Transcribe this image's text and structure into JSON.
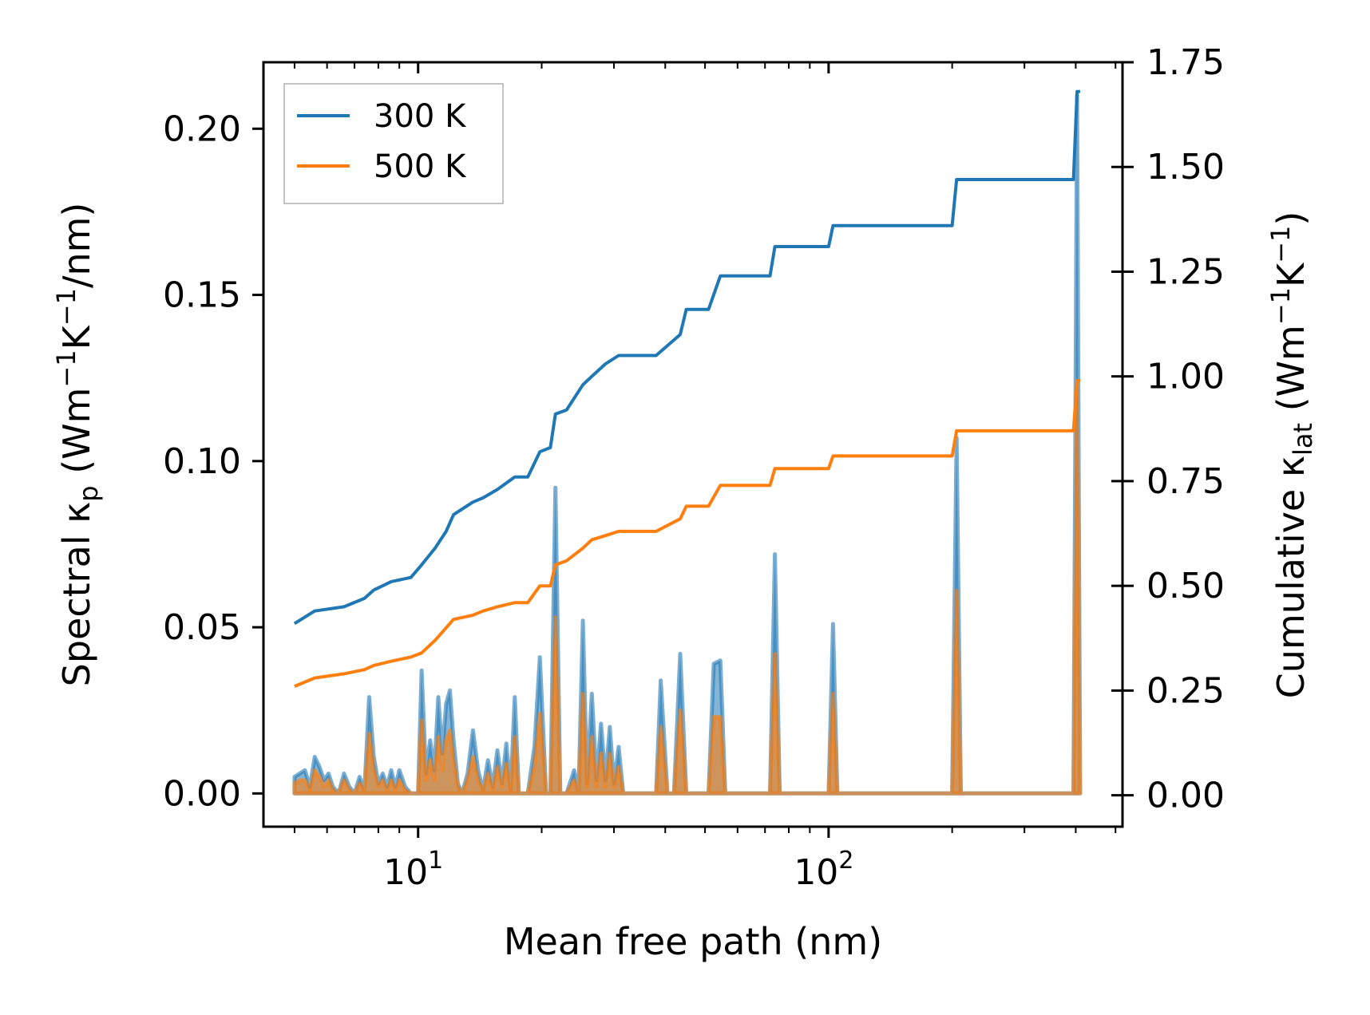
{
  "chart_data": {
    "type": "line",
    "xscale": "log",
    "xlabel": "Mean free path (nm)",
    "ylabel_left": "Spectral κp (Wm−1K−1/nm)",
    "ylabel_right": "Cumulative κlat (Wm−1K−1)",
    "ylabel_left_parts": {
      "a": "Spectral κ",
      "sub": "p",
      "b": " (Wm",
      "sup1": "−1",
      "c": "K",
      "sup2": "−1",
      "d": "/nm)"
    },
    "ylabel_right_parts": {
      "a": "Cumulative κ",
      "sub": "lat",
      "b": " (Wm",
      "sup1": "−1",
      "c": "K",
      "sup2": "−1",
      "d": ")"
    },
    "xlim": [
      4.2,
      520
    ],
    "ylim_left": [
      -0.01,
      0.22
    ],
    "ylim_right": [
      -0.075,
      1.75
    ],
    "xticks": [
      {
        "value": 10,
        "base": "10",
        "exp": "1"
      },
      {
        "value": 100,
        "base": "10",
        "exp": "2"
      }
    ],
    "yticks_left": [
      {
        "value": 0.0,
        "label": "0.00"
      },
      {
        "value": 0.05,
        "label": "0.05"
      },
      {
        "value": 0.1,
        "label": "0.10"
      },
      {
        "value": 0.15,
        "label": "0.15"
      },
      {
        "value": 0.2,
        "label": "0.20"
      }
    ],
    "yticks_right": [
      {
        "value": 0.0,
        "label": "0.00"
      },
      {
        "value": 0.25,
        "label": "0.25"
      },
      {
        "value": 0.5,
        "label": "0.50"
      },
      {
        "value": 0.75,
        "label": "0.75"
      },
      {
        "value": 1.0,
        "label": "1.00"
      },
      {
        "value": 1.25,
        "label": "1.25"
      },
      {
        "value": 1.5,
        "label": "1.50"
      },
      {
        "value": 1.75,
        "label": "1.75"
      }
    ],
    "legend": {
      "location": "upper-left",
      "entries": [
        "300 K",
        "500 K"
      ]
    },
    "series": [
      {
        "name": "300 K",
        "color": "#1f77b4",
        "spectral": [
          [
            5.0,
            0.005
          ],
          [
            5.15,
            0.006
          ],
          [
            5.3,
            0.007
          ],
          [
            5.45,
            0.002
          ],
          [
            5.6,
            0.011
          ],
          [
            5.75,
            0.008
          ],
          [
            5.9,
            0.004
          ],
          [
            6.05,
            0.006
          ],
          [
            6.2,
            0.002
          ],
          [
            6.4,
            0.0
          ],
          [
            6.6,
            0.006
          ],
          [
            6.8,
            0.002
          ],
          [
            7.0,
            0.0
          ],
          [
            7.2,
            0.005
          ],
          [
            7.4,
            0.001
          ],
          [
            7.6,
            0.029
          ],
          [
            7.8,
            0.011
          ],
          [
            8.0,
            0.003
          ],
          [
            8.2,
            0.006
          ],
          [
            8.4,
            0.002
          ],
          [
            8.6,
            0.007
          ],
          [
            8.8,
            0.002
          ],
          [
            9.0,
            0.007
          ],
          [
            9.3,
            0.002
          ],
          [
            9.6,
            0.0
          ],
          [
            10.0,
            0.0
          ],
          [
            10.2,
            0.037
          ],
          [
            10.45,
            0.006
          ],
          [
            10.7,
            0.016
          ],
          [
            10.95,
            0.007
          ],
          [
            11.2,
            0.029
          ],
          [
            11.45,
            0.012
          ],
          [
            11.7,
            0.027
          ],
          [
            11.95,
            0.031
          ],
          [
            12.2,
            0.016
          ],
          [
            12.5,
            0.003
          ],
          [
            12.8,
            0.0
          ],
          [
            13.2,
            0.006
          ],
          [
            13.6,
            0.019
          ],
          [
            14.0,
            0.007
          ],
          [
            14.4,
            0.001
          ],
          [
            14.8,
            0.01
          ],
          [
            15.2,
            0.002
          ],
          [
            15.6,
            0.013
          ],
          [
            16.0,
            0.003
          ],
          [
            16.4,
            0.015
          ],
          [
            16.8,
            0.001
          ],
          [
            17.2,
            0.029
          ],
          [
            17.6,
            0.0
          ],
          [
            18.5,
            0.0
          ],
          [
            19.2,
            0.014
          ],
          [
            19.8,
            0.041
          ],
          [
            20.5,
            0.0
          ],
          [
            21.0,
            0.0
          ],
          [
            21.6,
            0.092
          ],
          [
            22.2,
            0.0
          ],
          [
            23.0,
            0.0
          ],
          [
            24.0,
            0.007
          ],
          [
            24.6,
            0.0
          ],
          [
            25.2,
            0.052
          ],
          [
            25.8,
            0.003
          ],
          [
            26.5,
            0.03
          ],
          [
            27.2,
            0.004
          ],
          [
            27.9,
            0.021
          ],
          [
            28.6,
            0.004
          ],
          [
            29.3,
            0.02
          ],
          [
            30.0,
            0.003
          ],
          [
            30.8,
            0.014
          ],
          [
            31.6,
            0.0
          ],
          [
            38.0,
            0.0
          ],
          [
            39.0,
            0.034
          ],
          [
            40.5,
            0.0
          ],
          [
            42.0,
            0.0
          ],
          [
            43.5,
            0.042
          ],
          [
            45.0,
            0.0
          ],
          [
            51.0,
            0.0
          ],
          [
            52.5,
            0.039
          ],
          [
            54.5,
            0.04
          ],
          [
            56.0,
            0.0
          ],
          [
            72.0,
            0.0
          ],
          [
            74.0,
            0.072
          ],
          [
            76.0,
            0.0
          ],
          [
            100.0,
            0.0
          ],
          [
            102.5,
            0.051
          ],
          [
            105.0,
            0.0
          ],
          [
            200.0,
            0.0
          ],
          [
            205.0,
            0.107
          ],
          [
            210.0,
            0.0
          ],
          [
            395.0,
            0.0
          ],
          [
            403.0,
            0.21
          ],
          [
            410.0,
            0.0
          ]
        ],
        "cumulative": [
          [
            5.0,
            0.41
          ],
          [
            5.6,
            0.44
          ],
          [
            6.6,
            0.45
          ],
          [
            7.4,
            0.47
          ],
          [
            7.8,
            0.49
          ],
          [
            8.6,
            0.51
          ],
          [
            9.6,
            0.52
          ],
          [
            10.2,
            0.55
          ],
          [
            11.0,
            0.59
          ],
          [
            11.7,
            0.63
          ],
          [
            12.2,
            0.67
          ],
          [
            13.6,
            0.7
          ],
          [
            14.4,
            0.71
          ],
          [
            15.6,
            0.73
          ],
          [
            17.2,
            0.76
          ],
          [
            18.5,
            0.76
          ],
          [
            19.8,
            0.82
          ],
          [
            21.0,
            0.83
          ],
          [
            21.6,
            0.91
          ],
          [
            23.0,
            0.92
          ],
          [
            25.2,
            0.98
          ],
          [
            26.5,
            1.0
          ],
          [
            28.6,
            1.03
          ],
          [
            30.8,
            1.05
          ],
          [
            38.0,
            1.05
          ],
          [
            43.5,
            1.1
          ],
          [
            45.0,
            1.16
          ],
          [
            51.0,
            1.16
          ],
          [
            54.5,
            1.24
          ],
          [
            72.0,
            1.24
          ],
          [
            74.0,
            1.31
          ],
          [
            100.0,
            1.31
          ],
          [
            102.5,
            1.36
          ],
          [
            200.0,
            1.36
          ],
          [
            205.0,
            1.47
          ],
          [
            395.0,
            1.47
          ],
          [
            403.0,
            1.68
          ],
          [
            410.0,
            1.68
          ]
        ]
      },
      {
        "name": "500 K",
        "color": "#ff7f0e",
        "spectral": [
          [
            5.0,
            0.003
          ],
          [
            5.15,
            0.004
          ],
          [
            5.3,
            0.004
          ],
          [
            5.45,
            0.001
          ],
          [
            5.6,
            0.007
          ],
          [
            5.75,
            0.005
          ],
          [
            5.9,
            0.002
          ],
          [
            6.05,
            0.004
          ],
          [
            6.2,
            0.001
          ],
          [
            6.4,
            0.0
          ],
          [
            6.6,
            0.004
          ],
          [
            6.8,
            0.001
          ],
          [
            7.0,
            0.0
          ],
          [
            7.2,
            0.003
          ],
          [
            7.4,
            0.001
          ],
          [
            7.6,
            0.018
          ],
          [
            7.8,
            0.007
          ],
          [
            8.0,
            0.002
          ],
          [
            8.2,
            0.004
          ],
          [
            8.4,
            0.001
          ],
          [
            8.6,
            0.004
          ],
          [
            8.8,
            0.001
          ],
          [
            9.0,
            0.004
          ],
          [
            9.3,
            0.001
          ],
          [
            9.6,
            0.0
          ],
          [
            10.0,
            0.0
          ],
          [
            10.2,
            0.022
          ],
          [
            10.45,
            0.004
          ],
          [
            10.7,
            0.01
          ],
          [
            10.95,
            0.004
          ],
          [
            11.2,
            0.017
          ],
          [
            11.45,
            0.007
          ],
          [
            11.7,
            0.016
          ],
          [
            11.95,
            0.019
          ],
          [
            12.2,
            0.01
          ],
          [
            12.5,
            0.002
          ],
          [
            12.8,
            0.0
          ],
          [
            13.2,
            0.004
          ],
          [
            13.6,
            0.011
          ],
          [
            14.0,
            0.004
          ],
          [
            14.4,
            0.001
          ],
          [
            14.8,
            0.006
          ],
          [
            15.2,
            0.001
          ],
          [
            15.6,
            0.008
          ],
          [
            16.0,
            0.002
          ],
          [
            16.4,
            0.009
          ],
          [
            16.8,
            0.001
          ],
          [
            17.2,
            0.017
          ],
          [
            17.6,
            0.0
          ],
          [
            18.5,
            0.0
          ],
          [
            19.2,
            0.008
          ],
          [
            19.8,
            0.024
          ],
          [
            20.5,
            0.0
          ],
          [
            21.0,
            0.0
          ],
          [
            21.6,
            0.053
          ],
          [
            22.2,
            0.0
          ],
          [
            23.0,
            0.0
          ],
          [
            24.0,
            0.004
          ],
          [
            24.6,
            0.0
          ],
          [
            25.2,
            0.03
          ],
          [
            25.8,
            0.002
          ],
          [
            26.5,
            0.017
          ],
          [
            27.2,
            0.002
          ],
          [
            27.9,
            0.012
          ],
          [
            28.6,
            0.002
          ],
          [
            29.3,
            0.012
          ],
          [
            30.0,
            0.002
          ],
          [
            30.8,
            0.008
          ],
          [
            31.6,
            0.0
          ],
          [
            38.0,
            0.0
          ],
          [
            39.0,
            0.02
          ],
          [
            40.5,
            0.0
          ],
          [
            42.0,
            0.0
          ],
          [
            43.5,
            0.025
          ],
          [
            45.0,
            0.0
          ],
          [
            51.0,
            0.0
          ],
          [
            52.5,
            0.023
          ],
          [
            54.5,
            0.023
          ],
          [
            56.0,
            0.0
          ],
          [
            72.0,
            0.0
          ],
          [
            74.0,
            0.042
          ],
          [
            76.0,
            0.0
          ],
          [
            100.0,
            0.0
          ],
          [
            102.5,
            0.03
          ],
          [
            105.0,
            0.0
          ],
          [
            200.0,
            0.0
          ],
          [
            205.0,
            0.061
          ],
          [
            210.0,
            0.0
          ],
          [
            395.0,
            0.0
          ],
          [
            403.0,
            0.123
          ],
          [
            410.0,
            0.0
          ]
        ],
        "cumulative": [
          [
            5.0,
            0.26
          ],
          [
            5.6,
            0.28
          ],
          [
            6.6,
            0.29
          ],
          [
            7.4,
            0.3
          ],
          [
            7.8,
            0.31
          ],
          [
            8.6,
            0.32
          ],
          [
            9.6,
            0.33
          ],
          [
            10.2,
            0.34
          ],
          [
            11.0,
            0.37
          ],
          [
            11.7,
            0.4
          ],
          [
            12.2,
            0.42
          ],
          [
            13.6,
            0.43
          ],
          [
            14.4,
            0.44
          ],
          [
            15.6,
            0.45
          ],
          [
            17.2,
            0.46
          ],
          [
            18.5,
            0.46
          ],
          [
            19.8,
            0.5
          ],
          [
            21.0,
            0.5
          ],
          [
            21.6,
            0.55
          ],
          [
            23.0,
            0.56
          ],
          [
            25.2,
            0.59
          ],
          [
            26.5,
            0.61
          ],
          [
            28.6,
            0.62
          ],
          [
            30.8,
            0.63
          ],
          [
            38.0,
            0.63
          ],
          [
            43.5,
            0.66
          ],
          [
            45.0,
            0.69
          ],
          [
            51.0,
            0.69
          ],
          [
            54.5,
            0.74
          ],
          [
            72.0,
            0.74
          ],
          [
            74.0,
            0.78
          ],
          [
            100.0,
            0.78
          ],
          [
            102.5,
            0.81
          ],
          [
            200.0,
            0.81
          ],
          [
            205.0,
            0.87
          ],
          [
            395.0,
            0.87
          ],
          [
            403.0,
            0.99
          ],
          [
            410.0,
            0.99
          ]
        ]
      }
    ]
  }
}
